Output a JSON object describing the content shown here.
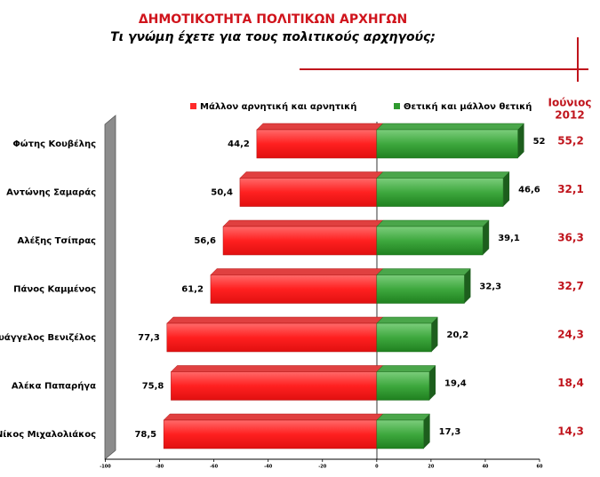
{
  "chart_data": {
    "type": "diverging_bar",
    "title": "ΔΗΜΟΤΙΚΟΤΗΤΑ ΠΟΛΙΤΙΚΩΝ ΑΡΧΗΓΩΝ",
    "subtitle": "Τι γνώμη έχετε για τους πολιτικούς αρχηγούς;",
    "categories": [
      "Φώτης Κουβέλης",
      "Αντώνης Σαμαράς",
      "Αλέξης Τσίπρας",
      "Πάνος Καμμένος",
      "Ευάγγελος Βενιζέλος",
      "Αλέκα Παπαρήγα",
      "Νίκος Μιχαλολιάκος"
    ],
    "series": [
      {
        "name": "Μάλλον αρνητική και αρνητική",
        "color": "#ff2a2a",
        "values": [
          -44.2,
          -50.4,
          -56.6,
          -61.2,
          -77.3,
          -75.8,
          -78.5
        ],
        "value_labels": [
          "44,2",
          "50,4",
          "56,6",
          "61,2",
          "77,3",
          "75,8",
          "78,5"
        ]
      },
      {
        "name": "Θετική και μάλλον θετική",
        "color": "#2f9a2f",
        "values": [
          52,
          46.6,
          39.1,
          32.3,
          20.2,
          19.4,
          17.3
        ],
        "value_labels": [
          "52",
          "46,6",
          "39,1",
          "32,3",
          "20,2",
          "19,4",
          "17,3"
        ]
      }
    ],
    "column_title": [
      "Ιούνιος",
      "2012"
    ],
    "column_values": [
      55.2,
      32.1,
      36.3,
      32.7,
      24.3,
      18.4,
      14.3
    ],
    "column_value_labels": [
      "55,2",
      "32,1",
      "36,3",
      "32,7",
      "24,3",
      "18,4",
      "14,3"
    ],
    "column_color": "#c0141c",
    "xlim": [
      -100,
      60
    ],
    "xticks": [
      -100,
      -80,
      -60,
      -40,
      -20,
      0,
      20,
      40,
      60
    ]
  }
}
